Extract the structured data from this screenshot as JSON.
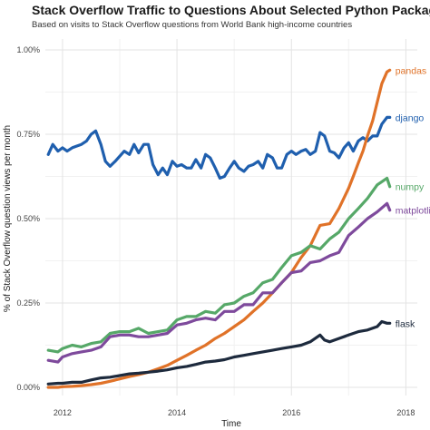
{
  "chart_data": {
    "type": "line",
    "title": "Stack Overflow Traffic to Questions About Selected Python Packages",
    "subtitle": "Based on visits to Stack Overflow questions from World Bank high-income countries",
    "xlabel": "Time",
    "ylabel": "% of Stack Overflow question views per month",
    "xlim": [
      2011.7,
      2018.2
    ],
    "ylim": [
      0,
      1.0
    ],
    "x_ticks": [
      2012,
      2014,
      2016,
      2018
    ],
    "x_tick_labels": [
      "2012",
      "2014",
      "2016",
      "2018"
    ],
    "y_ticks": [
      0,
      0.25,
      0.5,
      0.75,
      1.0
    ],
    "y_tick_labels": [
      "0.00%",
      "0.25%",
      "0.50%",
      "0.75%",
      "1.00%"
    ],
    "grid": true,
    "legend": "direct-labels-right",
    "series": [
      {
        "name": "django",
        "color": "#1f5fae",
        "points": [
          [
            2011.75,
            0.69
          ],
          [
            2011.83,
            0.72
          ],
          [
            2011.92,
            0.7
          ],
          [
            2012.0,
            0.71
          ],
          [
            2012.08,
            0.7
          ],
          [
            2012.17,
            0.71
          ],
          [
            2012.25,
            0.715
          ],
          [
            2012.33,
            0.72
          ],
          [
            2012.42,
            0.73
          ],
          [
            2012.5,
            0.75
          ],
          [
            2012.58,
            0.76
          ],
          [
            2012.67,
            0.72
          ],
          [
            2012.75,
            0.67
          ],
          [
            2012.83,
            0.655
          ],
          [
            2012.92,
            0.67
          ],
          [
            2013.0,
            0.685
          ],
          [
            2013.08,
            0.7
          ],
          [
            2013.17,
            0.69
          ],
          [
            2013.25,
            0.72
          ],
          [
            2013.33,
            0.695
          ],
          [
            2013.42,
            0.72
          ],
          [
            2013.5,
            0.72
          ],
          [
            2013.58,
            0.66
          ],
          [
            2013.67,
            0.63
          ],
          [
            2013.75,
            0.65
          ],
          [
            2013.83,
            0.63
          ],
          [
            2013.92,
            0.67
          ],
          [
            2014.0,
            0.655
          ],
          [
            2014.08,
            0.66
          ],
          [
            2014.17,
            0.65
          ],
          [
            2014.25,
            0.65
          ],
          [
            2014.33,
            0.675
          ],
          [
            2014.42,
            0.65
          ],
          [
            2014.5,
            0.69
          ],
          [
            2014.58,
            0.68
          ],
          [
            2014.67,
            0.65
          ],
          [
            2014.75,
            0.62
          ],
          [
            2014.83,
            0.625
          ],
          [
            2014.92,
            0.65
          ],
          [
            2015.0,
            0.67
          ],
          [
            2015.08,
            0.65
          ],
          [
            2015.17,
            0.64
          ],
          [
            2015.25,
            0.655
          ],
          [
            2015.33,
            0.66
          ],
          [
            2015.42,
            0.67
          ],
          [
            2015.5,
            0.65
          ],
          [
            2015.58,
            0.69
          ],
          [
            2015.67,
            0.68
          ],
          [
            2015.75,
            0.65
          ],
          [
            2015.83,
            0.65
          ],
          [
            2015.92,
            0.69
          ],
          [
            2016.0,
            0.7
          ],
          [
            2016.08,
            0.69
          ],
          [
            2016.17,
            0.7
          ],
          [
            2016.25,
            0.705
          ],
          [
            2016.33,
            0.69
          ],
          [
            2016.42,
            0.7
          ],
          [
            2016.5,
            0.755
          ],
          [
            2016.58,
            0.745
          ],
          [
            2016.67,
            0.7
          ],
          [
            2016.75,
            0.695
          ],
          [
            2016.83,
            0.68
          ],
          [
            2016.92,
            0.71
          ],
          [
            2017.0,
            0.725
          ],
          [
            2017.08,
            0.7
          ],
          [
            2017.17,
            0.73
          ],
          [
            2017.25,
            0.74
          ],
          [
            2017.33,
            0.73
          ],
          [
            2017.42,
            0.745
          ],
          [
            2017.5,
            0.745
          ],
          [
            2017.58,
            0.78
          ],
          [
            2017.67,
            0.8
          ],
          [
            2017.72,
            0.8
          ]
        ]
      },
      {
        "name": "pandas",
        "color": "#e07228",
        "points": [
          [
            2011.75,
            0.0
          ],
          [
            2011.92,
            0.0
          ],
          [
            2012.0,
            0.002
          ],
          [
            2012.17,
            0.003
          ],
          [
            2012.33,
            0.005
          ],
          [
            2012.5,
            0.008
          ],
          [
            2012.67,
            0.012
          ],
          [
            2012.83,
            0.018
          ],
          [
            2013.0,
            0.025
          ],
          [
            2013.17,
            0.032
          ],
          [
            2013.33,
            0.038
          ],
          [
            2013.5,
            0.045
          ],
          [
            2013.67,
            0.055
          ],
          [
            2013.83,
            0.065
          ],
          [
            2014.0,
            0.08
          ],
          [
            2014.17,
            0.095
          ],
          [
            2014.33,
            0.11
          ],
          [
            2014.5,
            0.125
          ],
          [
            2014.67,
            0.145
          ],
          [
            2014.83,
            0.16
          ],
          [
            2015.0,
            0.18
          ],
          [
            2015.17,
            0.2
          ],
          [
            2015.33,
            0.225
          ],
          [
            2015.5,
            0.25
          ],
          [
            2015.67,
            0.28
          ],
          [
            2015.83,
            0.31
          ],
          [
            2016.0,
            0.34
          ],
          [
            2016.17,
            0.385
          ],
          [
            2016.33,
            0.42
          ],
          [
            2016.5,
            0.48
          ],
          [
            2016.67,
            0.485
          ],
          [
            2016.83,
            0.53
          ],
          [
            2017.0,
            0.59
          ],
          [
            2017.08,
            0.625
          ],
          [
            2017.17,
            0.665
          ],
          [
            2017.25,
            0.7
          ],
          [
            2017.33,
            0.745
          ],
          [
            2017.42,
            0.79
          ],
          [
            2017.5,
            0.845
          ],
          [
            2017.58,
            0.9
          ],
          [
            2017.67,
            0.935
          ],
          [
            2017.72,
            0.94
          ]
        ]
      },
      {
        "name": "numpy",
        "color": "#56a868",
        "points": [
          [
            2011.75,
            0.11
          ],
          [
            2011.92,
            0.105
          ],
          [
            2012.0,
            0.115
          ],
          [
            2012.17,
            0.125
          ],
          [
            2012.33,
            0.12
          ],
          [
            2012.5,
            0.13
          ],
          [
            2012.67,
            0.135
          ],
          [
            2012.83,
            0.16
          ],
          [
            2013.0,
            0.165
          ],
          [
            2013.17,
            0.165
          ],
          [
            2013.33,
            0.175
          ],
          [
            2013.5,
            0.16
          ],
          [
            2013.67,
            0.165
          ],
          [
            2013.83,
            0.17
          ],
          [
            2014.0,
            0.2
          ],
          [
            2014.17,
            0.21
          ],
          [
            2014.33,
            0.21
          ],
          [
            2014.5,
            0.225
          ],
          [
            2014.67,
            0.22
          ],
          [
            2014.83,
            0.245
          ],
          [
            2015.0,
            0.25
          ],
          [
            2015.17,
            0.27
          ],
          [
            2015.33,
            0.28
          ],
          [
            2015.5,
            0.31
          ],
          [
            2015.67,
            0.32
          ],
          [
            2015.83,
            0.355
          ],
          [
            2016.0,
            0.39
          ],
          [
            2016.17,
            0.4
          ],
          [
            2016.33,
            0.42
          ],
          [
            2016.5,
            0.41
          ],
          [
            2016.67,
            0.44
          ],
          [
            2016.83,
            0.46
          ],
          [
            2017.0,
            0.5
          ],
          [
            2017.17,
            0.53
          ],
          [
            2017.33,
            0.56
          ],
          [
            2017.5,
            0.6
          ],
          [
            2017.67,
            0.62
          ],
          [
            2017.72,
            0.595
          ]
        ]
      },
      {
        "name": "matplotlib",
        "color": "#7e4a9c",
        "points": [
          [
            2011.75,
            0.08
          ],
          [
            2011.92,
            0.075
          ],
          [
            2012.0,
            0.09
          ],
          [
            2012.17,
            0.1
          ],
          [
            2012.33,
            0.105
          ],
          [
            2012.5,
            0.11
          ],
          [
            2012.67,
            0.12
          ],
          [
            2012.83,
            0.15
          ],
          [
            2013.0,
            0.155
          ],
          [
            2013.17,
            0.155
          ],
          [
            2013.33,
            0.15
          ],
          [
            2013.5,
            0.15
          ],
          [
            2013.67,
            0.155
          ],
          [
            2013.83,
            0.16
          ],
          [
            2014.0,
            0.185
          ],
          [
            2014.17,
            0.19
          ],
          [
            2014.33,
            0.2
          ],
          [
            2014.5,
            0.205
          ],
          [
            2014.67,
            0.2
          ],
          [
            2014.83,
            0.225
          ],
          [
            2015.0,
            0.225
          ],
          [
            2015.17,
            0.245
          ],
          [
            2015.33,
            0.245
          ],
          [
            2015.5,
            0.28
          ],
          [
            2015.67,
            0.28
          ],
          [
            2015.83,
            0.31
          ],
          [
            2016.0,
            0.34
          ],
          [
            2016.17,
            0.345
          ],
          [
            2016.33,
            0.37
          ],
          [
            2016.5,
            0.375
          ],
          [
            2016.67,
            0.39
          ],
          [
            2016.83,
            0.4
          ],
          [
            2017.0,
            0.45
          ],
          [
            2017.17,
            0.475
          ],
          [
            2017.33,
            0.5
          ],
          [
            2017.5,
            0.52
          ],
          [
            2017.67,
            0.545
          ],
          [
            2017.72,
            0.525
          ]
        ]
      },
      {
        "name": "flask",
        "color": "#1d2a3d",
        "points": [
          [
            2011.75,
            0.01
          ],
          [
            2011.92,
            0.012
          ],
          [
            2012.0,
            0.012
          ],
          [
            2012.17,
            0.015
          ],
          [
            2012.33,
            0.015
          ],
          [
            2012.5,
            0.022
          ],
          [
            2012.67,
            0.028
          ],
          [
            2012.83,
            0.03
          ],
          [
            2013.0,
            0.035
          ],
          [
            2013.17,
            0.04
          ],
          [
            2013.33,
            0.042
          ],
          [
            2013.5,
            0.045
          ],
          [
            2013.67,
            0.048
          ],
          [
            2013.83,
            0.052
          ],
          [
            2014.0,
            0.058
          ],
          [
            2014.17,
            0.062
          ],
          [
            2014.33,
            0.068
          ],
          [
            2014.5,
            0.075
          ],
          [
            2014.67,
            0.078
          ],
          [
            2014.83,
            0.082
          ],
          [
            2015.0,
            0.09
          ],
          [
            2015.17,
            0.095
          ],
          [
            2015.33,
            0.1
          ],
          [
            2015.5,
            0.105
          ],
          [
            2015.67,
            0.11
          ],
          [
            2015.83,
            0.115
          ],
          [
            2016.0,
            0.12
          ],
          [
            2016.17,
            0.125
          ],
          [
            2016.33,
            0.135
          ],
          [
            2016.5,
            0.155
          ],
          [
            2016.58,
            0.14
          ],
          [
            2016.67,
            0.135
          ],
          [
            2016.83,
            0.145
          ],
          [
            2017.0,
            0.155
          ],
          [
            2017.17,
            0.165
          ],
          [
            2017.33,
            0.17
          ],
          [
            2017.5,
            0.18
          ],
          [
            2017.58,
            0.195
          ],
          [
            2017.67,
            0.19
          ],
          [
            2017.72,
            0.19
          ]
        ]
      }
    ]
  }
}
